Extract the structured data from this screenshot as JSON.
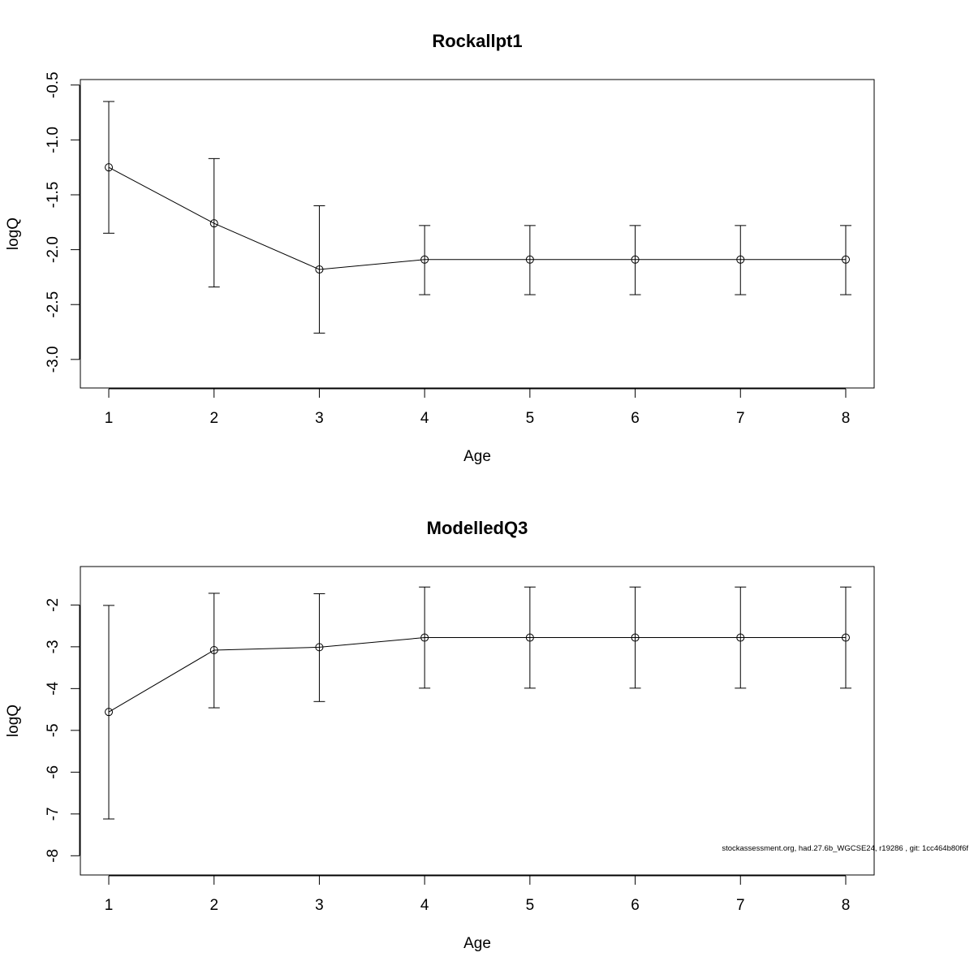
{
  "footnote": "stockassessment.org, had.27.6b_WGCSE24, r19286 , git: 1cc464b80f6f",
  "chart_data": [
    {
      "type": "line",
      "title": "Rockallpt1",
      "xlabel": "Age",
      "ylabel": "logQ",
      "x": [
        1,
        2,
        3,
        4,
        5,
        6,
        7,
        8
      ],
      "xticks": [
        "1",
        "2",
        "3",
        "4",
        "5",
        "6",
        "7",
        "8"
      ],
      "xlim": [
        0.73,
        8.27
      ],
      "yticks": [
        "-3.0",
        "-2.5",
        "-2.0",
        "-1.5",
        "-1.0",
        "-0.5"
      ],
      "ytick_values": [
        -3.0,
        -2.5,
        -2.0,
        -1.5,
        -1.0,
        -0.5
      ],
      "ylim": [
        -3.26,
        -0.45
      ],
      "series": [
        {
          "values": [
            -1.25,
            -1.76,
            -2.18,
            -2.09,
            -2.09,
            -2.09,
            -2.09,
            -2.09
          ],
          "lower": [
            -1.85,
            -2.34,
            -2.76,
            -2.41,
            -2.41,
            -2.41,
            -2.41,
            -2.41
          ],
          "upper": [
            -0.65,
            -1.17,
            -1.6,
            -1.78,
            -1.78,
            -1.78,
            -1.78,
            -1.78
          ]
        }
      ],
      "grid": false
    },
    {
      "type": "line",
      "title": "ModelledQ3",
      "xlabel": "Age",
      "ylabel": "logQ",
      "x": [
        1,
        2,
        3,
        4,
        5,
        6,
        7,
        8
      ],
      "xticks": [
        "1",
        "2",
        "3",
        "4",
        "5",
        "6",
        "7",
        "8"
      ],
      "xlim": [
        0.73,
        8.27
      ],
      "yticks": [
        "-8",
        "-7",
        "-6",
        "-5",
        "-4",
        "-3",
        "-2"
      ],
      "ytick_values": [
        -8,
        -7,
        -6,
        -5,
        -4,
        -3,
        -2
      ],
      "ylim": [
        -8.46,
        -1.08
      ],
      "series": [
        {
          "values": [
            -4.56,
            -3.08,
            -3.01,
            -2.78,
            -2.78,
            -2.78,
            -2.78,
            -2.78
          ],
          "lower": [
            -7.12,
            -4.46,
            -4.31,
            -3.99,
            -3.99,
            -3.99,
            -3.99,
            -3.99
          ],
          "upper": [
            -2.01,
            -1.72,
            -1.73,
            -1.57,
            -1.57,
            -1.57,
            -1.57,
            -1.57
          ]
        }
      ],
      "grid": false
    }
  ]
}
